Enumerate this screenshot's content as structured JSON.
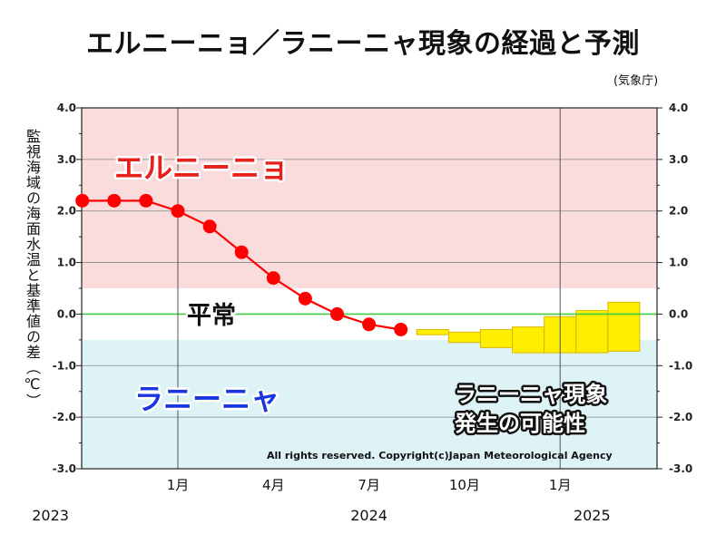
{
  "title": "エルニーニョ／ラニーニャ現象の経過と予測",
  "source": "(気象庁)",
  "chart_data": {
    "type": "line",
    "ylabel": "監視海域の海面水温と基準値の差（℃）",
    "ylim": [
      -3.0,
      4.0
    ],
    "yticks": [
      "4.0",
      "3.0",
      "2.0",
      "1.0",
      "0.0",
      "-1.0",
      "-2.0",
      "-3.0"
    ],
    "xticks": [
      {
        "month": "2024-01",
        "label": "1月"
      },
      {
        "month": "2024-04",
        "label": "4月"
      },
      {
        "month": "2024-07",
        "label": "7月"
      },
      {
        "month": "2024-10",
        "label": "10月"
      },
      {
        "month": "2025-01",
        "label": "1月"
      }
    ],
    "year_labels": [
      {
        "month": "2023-09",
        "label": "2023"
      },
      {
        "month": "2024-07",
        "label": "2024"
      },
      {
        "month": "2025-02",
        "label": "2025"
      }
    ],
    "bands": [
      {
        "name": "エルニーニョ",
        "from": 0.5,
        "to": 4.0,
        "color": "#fadcdc",
        "label_color": "#e8201a"
      },
      {
        "name": "平常",
        "from": -0.5,
        "to": 0.5,
        "color": "#ffffff",
        "label_color": "#111111"
      },
      {
        "name": "ラニーニャ",
        "from": -3.0,
        "to": -0.5,
        "color": "#ddf3f6",
        "label_color": "#1a36e0"
      }
    ],
    "band_labels": {
      "el_nino": "エルニーニョ",
      "normal": "平常",
      "la_nina": "ラニーニャ"
    },
    "series": [
      {
        "color": "#ff0000",
        "x": [
          "2023-10",
          "2023-11",
          "2023-12",
          "2024-01",
          "2024-02",
          "2024-03",
          "2024-04",
          "2024-05",
          "2024-06",
          "2024-07",
          "2024-08"
        ],
        "y": [
          2.2,
          2.2,
          2.2,
          2.0,
          1.7,
          1.2,
          0.7,
          0.3,
          0.0,
          -0.2,
          -0.3
        ]
      }
    ],
    "forecast": {
      "color": "#ffee00",
      "border": "#d9b800",
      "months": [
        "2024-09",
        "2024-10",
        "2024-11",
        "2024-12",
        "2025-01",
        "2025-02",
        "2025-03"
      ],
      "low": [
        -0.4,
        -0.55,
        -0.65,
        -0.75,
        -0.75,
        -0.75,
        -0.72
      ],
      "high": [
        -0.3,
        -0.35,
        -0.3,
        -0.25,
        -0.05,
        0.07,
        0.23
      ]
    },
    "annotation": "ラニーニャ現象\n発生の可能性",
    "copyright": "All rights reserved. Copyright(c)Japan Meteorological Agency",
    "grid": true,
    "zero_line_color": "#44cc44"
  }
}
